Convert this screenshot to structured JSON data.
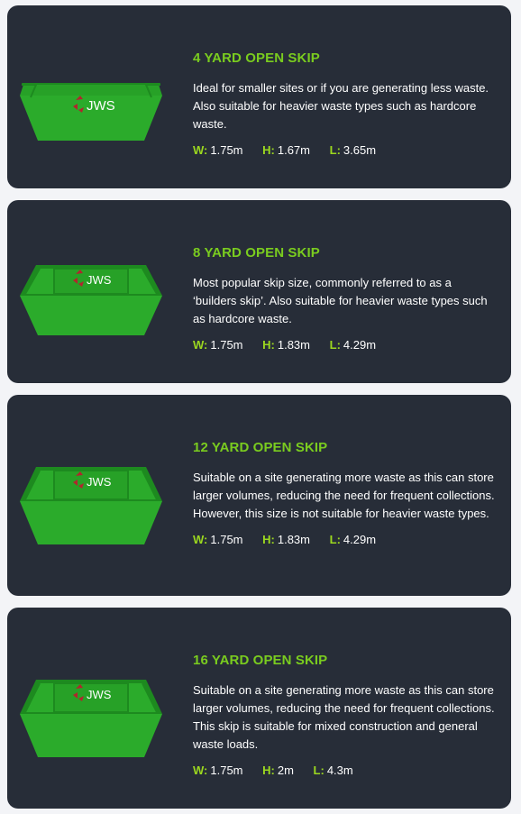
{
  "colors": {
    "page_bg": "#f3f4f7",
    "card_bg": "#272d38",
    "accent_green": "#7acc1f",
    "skip_green": "#2bab2b",
    "skip_dark": "#1d8a1f",
    "logo_red": "#b0262d"
  },
  "skips": [
    {
      "title": "4 YARD OPEN SKIP",
      "description": "Ideal for smaller sites or if you are generating less waste. Also suitable for heavier waste types such as hardcore waste.",
      "logo": "JWS",
      "icon": "flat-skip-icon",
      "dims": [
        {
          "key": "W:",
          "value": "1.75m"
        },
        {
          "key": "H:",
          "value": "1.67m"
        },
        {
          "key": "L:",
          "value": "3.65m"
        }
      ]
    },
    {
      "title": "8 YARD OPEN SKIP",
      "description": "Most popular skip size, commonly referred to as a ‘builders skip’. Also suitable for heavier waste types such as hardcore waste.",
      "logo": "JWS",
      "icon": "open-skip-icon",
      "dims": [
        {
          "key": "W:",
          "value": "1.75m"
        },
        {
          "key": "H:",
          "value": "1.83m"
        },
        {
          "key": "L:",
          "value": "4.29m"
        }
      ]
    },
    {
      "title": "12 YARD OPEN SKIP",
      "description": "Suitable on a site generating more waste as this can store larger volumes, reducing the need for frequent collections. However, this size is not suitable for heavier waste types.",
      "logo": "JWS",
      "icon": "open-skip-icon",
      "dims": [
        {
          "key": "W:",
          "value": "1.75m"
        },
        {
          "key": "H:",
          "value": "1.83m"
        },
        {
          "key": "L:",
          "value": "4.29m"
        }
      ]
    },
    {
      "title": "16 YARD OPEN SKIP",
      "description": "Suitable on a site generating more waste as this can store larger volumes, reducing the need for frequent collections. This skip is suitable for mixed construction and general waste loads.",
      "logo": "JWS",
      "icon": "open-skip-icon",
      "dims": [
        {
          "key": "W:",
          "value": "1.75m"
        },
        {
          "key": "H:",
          "value": "2m"
        },
        {
          "key": "L:",
          "value": "4.3m"
        }
      ]
    }
  ]
}
